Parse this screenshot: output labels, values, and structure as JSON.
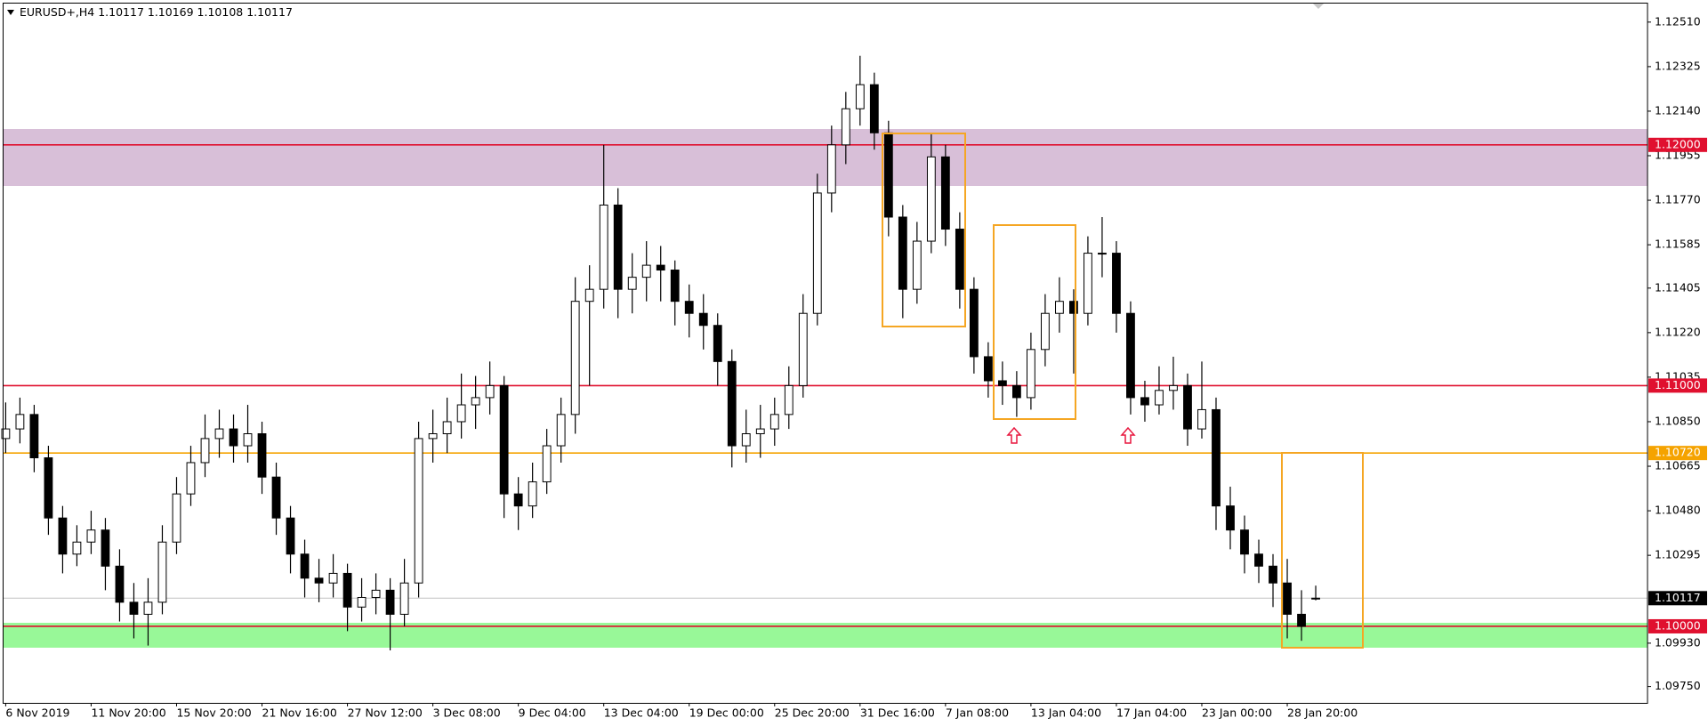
{
  "chart_data": {
    "type": "candlestick",
    "header": "EURUSD+,H4  1.10117 1.10169 1.10108 1.10117",
    "categories": [
      "6 Nov 2019",
      null,
      null,
      null,
      null,
      null,
      "11 Nov 20:00",
      null,
      null,
      null,
      null,
      null,
      "15 Nov 20:00",
      null,
      null,
      null,
      null,
      null,
      "21 Nov 16:00",
      null,
      null,
      null,
      null,
      null,
      "27 Nov 12:00",
      null,
      null,
      null,
      null,
      null,
      "3 Dec 08:00",
      null,
      null,
      null,
      null,
      null,
      "9 Dec 04:00",
      null,
      null,
      null,
      null,
      null,
      "13 Dec 04:00",
      null,
      null,
      null,
      null,
      null,
      "19 Dec 00:00",
      null,
      null,
      null,
      null,
      null,
      "25 Dec 20:00",
      null,
      null,
      null,
      null,
      null,
      "31 Dec 16:00",
      null,
      null,
      null,
      null,
      null,
      "7 Jan 08:00",
      null,
      null,
      null,
      null,
      null,
      "13 Jan 04:00",
      null,
      null,
      null,
      null,
      null,
      "17 Jan 04:00",
      null,
      null,
      null,
      null,
      null,
      "23 Jan 00:00",
      null,
      null,
      null,
      null,
      null,
      "28 Jan 20:00",
      null,
      null
    ],
    "ohlc": [
      [
        1.1078,
        1.1093,
        1.1072,
        1.1082
      ],
      [
        1.1082,
        1.1095,
        1.1076,
        1.1088
      ],
      [
        1.1088,
        1.1092,
        1.1064,
        1.107
      ],
      [
        1.107,
        1.1075,
        1.1038,
        1.1045
      ],
      [
        1.1045,
        1.105,
        1.1022,
        1.103
      ],
      [
        1.103,
        1.1042,
        1.1025,
        1.1035
      ],
      [
        1.1035,
        1.1048,
        1.103,
        1.104
      ],
      [
        1.104,
        1.1045,
        1.1015,
        1.1025
      ],
      [
        1.1025,
        1.1032,
        1.1002,
        1.101
      ],
      [
        1.101,
        1.1018,
        1.0995,
        1.1005
      ],
      [
        1.1005,
        1.102,
        1.0992,
        1.101
      ],
      [
        1.101,
        1.1042,
        1.1005,
        1.1035
      ],
      [
        1.1035,
        1.1062,
        1.103,
        1.1055
      ],
      [
        1.1055,
        1.1075,
        1.105,
        1.1068
      ],
      [
        1.1068,
        1.1088,
        1.1062,
        1.1078
      ],
      [
        1.1078,
        1.109,
        1.107,
        1.1082
      ],
      [
        1.1082,
        1.1088,
        1.1068,
        1.1075
      ],
      [
        1.1075,
        1.1092,
        1.1068,
        1.108
      ],
      [
        1.108,
        1.1085,
        1.1055,
        1.1062
      ],
      [
        1.1062,
        1.1068,
        1.1038,
        1.1045
      ],
      [
        1.1045,
        1.105,
        1.1022,
        1.103
      ],
      [
        1.103,
        1.1036,
        1.1012,
        1.102
      ],
      [
        1.102,
        1.1028,
        1.101,
        1.1018
      ],
      [
        1.1018,
        1.103,
        1.1012,
        1.1022
      ],
      [
        1.1022,
        1.1026,
        1.0998,
        1.1008
      ],
      [
        1.1008,
        1.102,
        1.1002,
        1.1012
      ],
      [
        1.1012,
        1.1022,
        1.1005,
        1.1015
      ],
      [
        1.1015,
        1.102,
        1.099,
        1.1005
      ],
      [
        1.1005,
        1.1028,
        1.1,
        1.1018
      ],
      [
        1.1018,
        1.1085,
        1.1012,
        1.1078
      ],
      [
        1.1078,
        1.109,
        1.1068,
        1.108
      ],
      [
        1.108,
        1.1095,
        1.1072,
        1.1085
      ],
      [
        1.1085,
        1.1105,
        1.1078,
        1.1092
      ],
      [
        1.1092,
        1.1104,
        1.1082,
        1.1095
      ],
      [
        1.1095,
        1.111,
        1.1088,
        1.11
      ],
      [
        1.11,
        1.1104,
        1.1045,
        1.1055
      ],
      [
        1.1055,
        1.1062,
        1.104,
        1.105
      ],
      [
        1.105,
        1.1068,
        1.1045,
        1.106
      ],
      [
        1.106,
        1.1082,
        1.1055,
        1.1075
      ],
      [
        1.1075,
        1.1095,
        1.1068,
        1.1088
      ],
      [
        1.1088,
        1.1145,
        1.108,
        1.1135
      ],
      [
        1.1135,
        1.115,
        1.11,
        1.114
      ],
      [
        1.114,
        1.12,
        1.1132,
        1.1175
      ],
      [
        1.1175,
        1.1182,
        1.1128,
        1.114
      ],
      [
        1.114,
        1.1155,
        1.113,
        1.1145
      ],
      [
        1.1145,
        1.116,
        1.1135,
        1.115
      ],
      [
        1.115,
        1.1158,
        1.1135,
        1.1148
      ],
      [
        1.1148,
        1.1152,
        1.1125,
        1.1135
      ],
      [
        1.1135,
        1.1142,
        1.112,
        1.113
      ],
      [
        1.113,
        1.1138,
        1.1115,
        1.1125
      ],
      [
        1.1125,
        1.113,
        1.11,
        1.111
      ],
      [
        1.111,
        1.1115,
        1.1066,
        1.1075
      ],
      [
        1.1075,
        1.109,
        1.1068,
        1.108
      ],
      [
        1.108,
        1.1092,
        1.107,
        1.1082
      ],
      [
        1.1082,
        1.1095,
        1.1075,
        1.1088
      ],
      [
        1.1088,
        1.1108,
        1.1082,
        1.11
      ],
      [
        1.11,
        1.1138,
        1.1095,
        1.113
      ],
      [
        1.113,
        1.1188,
        1.1125,
        1.118
      ],
      [
        1.118,
        1.1208,
        1.1172,
        1.12
      ],
      [
        1.12,
        1.1222,
        1.1192,
        1.1215
      ],
      [
        1.1215,
        1.1237,
        1.1208,
        1.1225
      ],
      [
        1.1225,
        1.123,
        1.1198,
        1.1205
      ],
      [
        1.1205,
        1.121,
        1.1162,
        1.117
      ],
      [
        1.117,
        1.1175,
        1.1128,
        1.114
      ],
      [
        1.114,
        1.1168,
        1.1134,
        1.116
      ],
      [
        1.116,
        1.1205,
        1.1155,
        1.1195
      ],
      [
        1.1195,
        1.12,
        1.1158,
        1.1165
      ],
      [
        1.1165,
        1.1172,
        1.1132,
        1.114
      ],
      [
        1.114,
        1.1145,
        1.1105,
        1.1112
      ],
      [
        1.1112,
        1.1118,
        1.1095,
        1.1102
      ],
      [
        1.1102,
        1.111,
        1.1092,
        1.11
      ],
      [
        1.11,
        1.1106,
        1.1087,
        1.1095
      ],
      [
        1.1095,
        1.1122,
        1.109,
        1.1115
      ],
      [
        1.1115,
        1.1138,
        1.1108,
        1.113
      ],
      [
        1.113,
        1.1145,
        1.1122,
        1.1135
      ],
      [
        1.1135,
        1.114,
        1.1105,
        1.113
      ],
      [
        1.113,
        1.1162,
        1.1125,
        1.1155
      ],
      [
        1.1155,
        1.117,
        1.1145,
        1.1155
      ],
      [
        1.1155,
        1.116,
        1.1122,
        1.113
      ],
      [
        1.113,
        1.1135,
        1.1088,
        1.1095
      ],
      [
        1.1095,
        1.1102,
        1.1085,
        1.1092
      ],
      [
        1.1092,
        1.1108,
        1.1088,
        1.1098
      ],
      [
        1.1098,
        1.1112,
        1.109,
        1.11
      ],
      [
        1.11,
        1.1105,
        1.1075,
        1.1082
      ],
      [
        1.1082,
        1.111,
        1.1078,
        1.109
      ],
      [
        1.109,
        1.1095,
        1.104,
        1.105
      ],
      [
        1.105,
        1.1058,
        1.1032,
        1.104
      ],
      [
        1.104,
        1.1046,
        1.1022,
        1.103
      ],
      [
        1.103,
        1.1036,
        1.1018,
        1.1025
      ],
      [
        1.1025,
        1.103,
        1.1008,
        1.1018
      ],
      [
        1.1018,
        1.1028,
        1.0995,
        1.1005
      ],
      [
        1.1005,
        1.1015,
        1.0994,
        1.1
      ],
      [
        1.10117,
        1.10169,
        1.10108,
        1.10117
      ]
    ],
    "xlim": [
      -0.15,
      115.3
    ],
    "ylim": [
      1.09682,
      1.12587
    ],
    "yticks": [
      {
        "value": 1.1251,
        "label": "1.12510"
      },
      {
        "value": 1.12325,
        "label": "1.12325"
      },
      {
        "value": 1.1214,
        "label": "1.12140"
      },
      {
        "value": 1.11955,
        "label": "1.11955"
      },
      {
        "value": 1.1177,
        "label": "1.11770"
      },
      {
        "value": 1.11585,
        "label": "1.11585"
      },
      {
        "value": 1.11405,
        "label": "1.11405"
      },
      {
        "value": 1.1122,
        "label": "1.11220"
      },
      {
        "value": 1.11035,
        "label": "1.11035"
      },
      {
        "value": 1.1085,
        "label": "1.10850"
      },
      {
        "value": 1.10665,
        "label": "1.10665"
      },
      {
        "value": 1.1048,
        "label": "1.10480"
      },
      {
        "value": 1.10295,
        "label": "1.10295"
      },
      {
        "value": 1.0993,
        "label": "1.09930"
      },
      {
        "value": 1.0975,
        "label": "1.09750"
      }
    ],
    "levels": [
      {
        "value": 1.12,
        "label": "1.12000",
        "color": "#e0102f"
      },
      {
        "value": 1.11,
        "label": "1.11000",
        "color": "#e0102f"
      },
      {
        "value": 1.1072,
        "label": "1.10720",
        "color": "#f5a300"
      },
      {
        "value": 1.1,
        "label": "1.10000",
        "color": "#e0102f"
      }
    ],
    "current_price": {
      "value": 1.10117,
      "label": "1.10117",
      "color": "#c8c8c8"
    },
    "grid": false
  }
}
